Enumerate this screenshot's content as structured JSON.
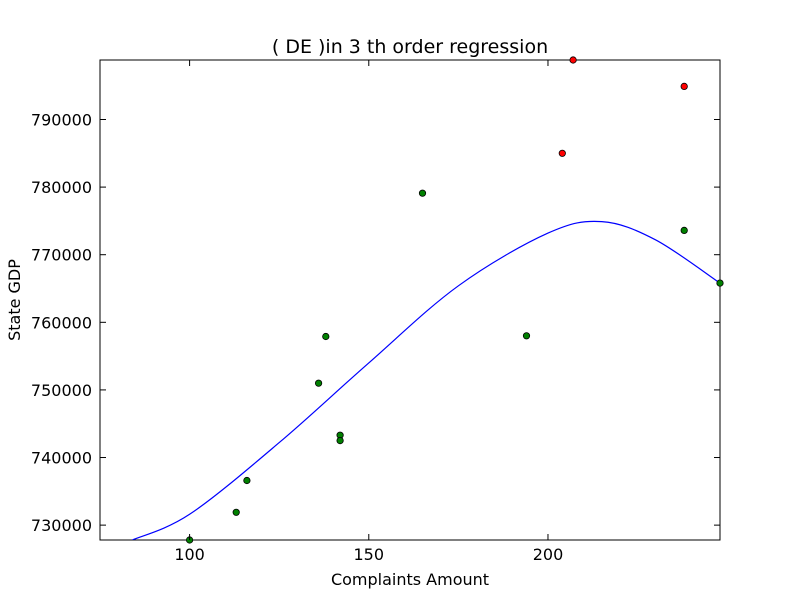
{
  "chart_data": {
    "type": "scatter",
    "title": "(  DE  )in 3 th order regression",
    "xlabel": "Complaints Amount",
    "ylabel": "State GDP",
    "xlim": [
      75,
      248
    ],
    "ylim": [
      727800,
      798800
    ],
    "x_ticks": [
      100,
      150,
      200
    ],
    "y_ticks": [
      730000,
      740000,
      750000,
      760000,
      770000,
      780000,
      790000
    ],
    "x_tick_labels": [
      "100",
      "150",
      "200"
    ],
    "y_tick_labels": [
      "730000",
      "740000",
      "750000",
      "760000",
      "770000",
      "780000",
      "790000"
    ],
    "grid": false,
    "series": [
      {
        "color": "#008000",
        "points": [
          {
            "x": 100,
            "y": 727800
          },
          {
            "x": 113,
            "y": 731900
          },
          {
            "x": 116,
            "y": 736600
          },
          {
            "x": 136,
            "y": 751000
          },
          {
            "x": 138,
            "y": 757900
          },
          {
            "x": 142,
            "y": 743300
          },
          {
            "x": 142,
            "y": 742500
          },
          {
            "x": 165,
            "y": 779100
          },
          {
            "x": 194,
            "y": 758000
          },
          {
            "x": 238,
            "y": 773600
          },
          {
            "x": 248,
            "y": 765800
          }
        ]
      },
      {
        "color": "#ff0000",
        "points": [
          {
            "x": 204,
            "y": 785000
          },
          {
            "x": 207,
            "y": 798800
          },
          {
            "x": 238,
            "y": 794900
          }
        ]
      }
    ],
    "curve": {
      "color": "#0000ff",
      "samples": [
        {
          "x": 84,
          "y": 727800
        },
        {
          "x": 100,
          "y": 731600
        },
        {
          "x": 125,
          "y": 742200
        },
        {
          "x": 150,
          "y": 754000
        },
        {
          "x": 175,
          "y": 765400
        },
        {
          "x": 200,
          "y": 773200
        },
        {
          "x": 215,
          "y": 774900
        },
        {
          "x": 230,
          "y": 772200
        },
        {
          "x": 248,
          "y": 765800
        }
      ]
    }
  }
}
